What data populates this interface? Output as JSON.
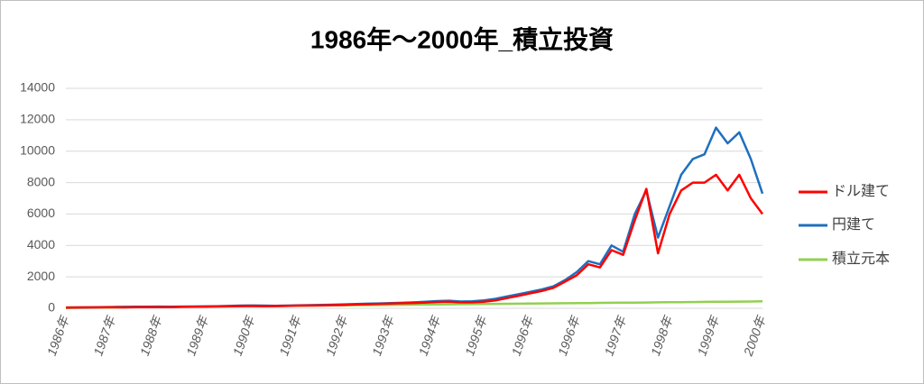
{
  "chart_data": {
    "type": "line",
    "title": "1986年～2000年_積立投資",
    "categories": [
      "1986年",
      null,
      null,
      null,
      "1987年",
      null,
      null,
      null,
      "1988年",
      null,
      null,
      null,
      "1989年",
      null,
      null,
      null,
      "1990年",
      null,
      null,
      null,
      "1991年",
      null,
      null,
      null,
      "1992年",
      null,
      null,
      null,
      "1993年",
      null,
      null,
      null,
      "1994年",
      null,
      null,
      null,
      "1995年",
      null,
      null,
      null,
      "1996年",
      null,
      null,
      null,
      "1996年",
      null,
      null,
      null,
      "1997年",
      null,
      null,
      null,
      "1998年",
      null,
      null,
      null,
      "1999年",
      null,
      null,
      null,
      "2000年"
    ],
    "series": [
      {
        "name": "ドル建て",
        "color": "#ff0000",
        "values": [
          45,
          50,
          55,
          60,
          70,
          60,
          70,
          80,
          75,
          70,
          90,
          100,
          110,
          120,
          130,
          140,
          150,
          130,
          140,
          150,
          170,
          180,
          190,
          200,
          220,
          240,
          260,
          280,
          300,
          320,
          340,
          370,
          400,
          420,
          380,
          380,
          420,
          500,
          650,
          800,
          950,
          1100,
          1300,
          1700,
          2100,
          2800,
          2600,
          3700,
          3400,
          5600,
          7600,
          3500,
          6000,
          7500,
          8000,
          8000,
          8500,
          7500,
          8500,
          7000,
          6000
        ]
      },
      {
        "name": "円建て",
        "color": "#1f6fbf",
        "values": [
          50,
          55,
          60,
          70,
          80,
          90,
          95,
          100,
          110,
          105,
          110,
          115,
          120,
          130,
          150,
          170,
          180,
          170,
          160,
          170,
          190,
          200,
          210,
          230,
          250,
          270,
          290,
          310,
          330,
          350,
          380,
          420,
          460,
          480,
          430,
          450,
          500,
          600,
          750,
          900,
          1050,
          1200,
          1400,
          1800,
          2300,
          3000,
          2800,
          4000,
          3600,
          6000,
          7500,
          4500,
          6500,
          8500,
          9500,
          9800,
          11500,
          10500,
          11200,
          9500,
          7300
        ]
      },
      {
        "name": "積立元本",
        "color": "#92d050",
        "values": [
          20,
          27,
          34,
          41,
          48,
          55,
          62,
          69,
          76,
          83,
          90,
          97,
          104,
          111,
          118,
          125,
          132,
          139,
          146,
          153,
          160,
          167,
          174,
          181,
          188,
          195,
          202,
          209,
          216,
          223,
          230,
          237,
          244,
          251,
          258,
          265,
          272,
          279,
          286,
          293,
          300,
          307,
          314,
          321,
          328,
          335,
          342,
          349,
          356,
          363,
          370,
          377,
          384,
          391,
          398,
          405,
          412,
          419,
          426,
          433,
          440
        ]
      }
    ],
    "ylim": [
      0,
      14000
    ],
    "yticks": [
      0,
      2000,
      4000,
      6000,
      8000,
      10000,
      12000,
      14000
    ],
    "grid": true,
    "legend": "right"
  }
}
